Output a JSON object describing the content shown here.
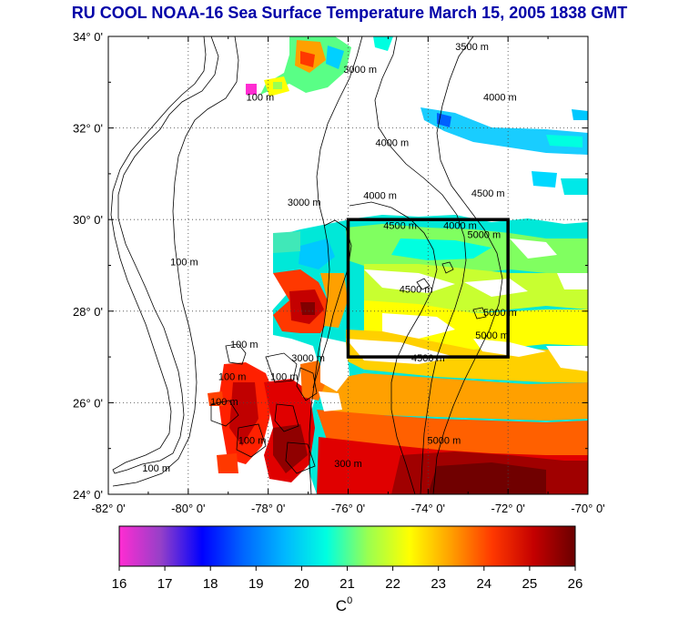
{
  "title": "RU COOL  NOAA-16 Sea Surface Temperature March 15, 2005 1838 GMT",
  "map": {
    "lon_range": [
      -82,
      -70
    ],
    "lat_range": [
      24,
      34
    ],
    "lat_ticks": [
      {
        "value": 34,
        "label": "34° 0'"
      },
      {
        "value": 32,
        "label": "32° 0'"
      },
      {
        "value": 30,
        "label": "30° 0'"
      },
      {
        "value": 28,
        "label": "28° 0'"
      },
      {
        "value": 26,
        "label": "26° 0'"
      },
      {
        "value": 24,
        "label": "24° 0'"
      }
    ],
    "lon_ticks": [
      {
        "value": -82,
        "label": "-82° 0'"
      },
      {
        "value": -80,
        "label": "-80° 0'"
      },
      {
        "value": -78,
        "label": "-78° 0'"
      },
      {
        "value": -76,
        "label": "-76° 0'"
      },
      {
        "value": -74,
        "label": "-74° 0'"
      },
      {
        "value": -72,
        "label": "-72° 0'"
      },
      {
        "value": -70,
        "label": "-70° 0'"
      }
    ],
    "grid": "dotted",
    "study_box": {
      "lon": [
        -76,
        -72
      ],
      "lat": [
        27,
        30
      ]
    },
    "depth_labels": [
      {
        "text": "3000 m",
        "lon": -75.7,
        "lat": 33.2
      },
      {
        "text": "3500 m",
        "lon": -72.9,
        "lat": 33.7
      },
      {
        "text": "4000 m",
        "lon": -72.2,
        "lat": 32.6
      },
      {
        "text": "100 m",
        "lon": -78.2,
        "lat": 32.6
      },
      {
        "text": "4000 m",
        "lon": -74.9,
        "lat": 31.6
      },
      {
        "text": "4500 m",
        "lon": -72.5,
        "lat": 30.5
      },
      {
        "text": "3000 m",
        "lon": -77.1,
        "lat": 30.3
      },
      {
        "text": "4000 m",
        "lon": -75.2,
        "lat": 30.45
      },
      {
        "text": "4000 m",
        "lon": -73.2,
        "lat": 29.8
      },
      {
        "text": "4500 m",
        "lon": -74.7,
        "lat": 29.8
      },
      {
        "text": "5000 m",
        "lon": -72.6,
        "lat": 29.6
      },
      {
        "text": "100 m",
        "lon": -80.1,
        "lat": 29.0
      },
      {
        "text": "4500 m",
        "lon": -74.3,
        "lat": 28.4
      },
      {
        "text": "5000 m",
        "lon": -72.2,
        "lat": 27.9
      },
      {
        "text": "5000 m",
        "lon": -72.4,
        "lat": 27.4
      },
      {
        "text": "100 m",
        "lon": -78.6,
        "lat": 27.2
      },
      {
        "text": "4500 m",
        "lon": -74.0,
        "lat": 26.9
      },
      {
        "text": "3000 m",
        "lon": -77.0,
        "lat": 26.9
      },
      {
        "text": "100 m",
        "lon": -78.9,
        "lat": 26.5
      },
      {
        "text": "100 m",
        "lon": -77.6,
        "lat": 26.5
      },
      {
        "text": "100 m",
        "lon": -79.1,
        "lat": 25.95
      },
      {
        "text": "5000 m",
        "lon": -73.6,
        "lat": 25.1
      },
      {
        "text": "100 m",
        "lon": -78.4,
        "lat": 25.1
      },
      {
        "text": "300 m",
        "lon": -76.0,
        "lat": 24.6
      },
      {
        "text": "100 m",
        "lon": -80.8,
        "lat": 24.5
      }
    ]
  },
  "colorbar": {
    "min": 16,
    "max": 26,
    "tick_labels": [
      "16",
      "17",
      "18",
      "19",
      "20",
      "21",
      "22",
      "23",
      "24",
      "25",
      "26"
    ],
    "unit_base": "C",
    "unit_sup": "0",
    "colors": [
      "#ff2cd2",
      "#9540c8",
      "#0000ff",
      "#0066ff",
      "#00b8ff",
      "#00ffe0",
      "#9aff50",
      "#ffff00",
      "#ffa000",
      "#ff3800",
      "#c40000",
      "#6a0000"
    ]
  },
  "palette": {
    "title": "#0000a8",
    "land": "#ffffff",
    "cloud": "#ffffff",
    "coast": "#000000"
  }
}
